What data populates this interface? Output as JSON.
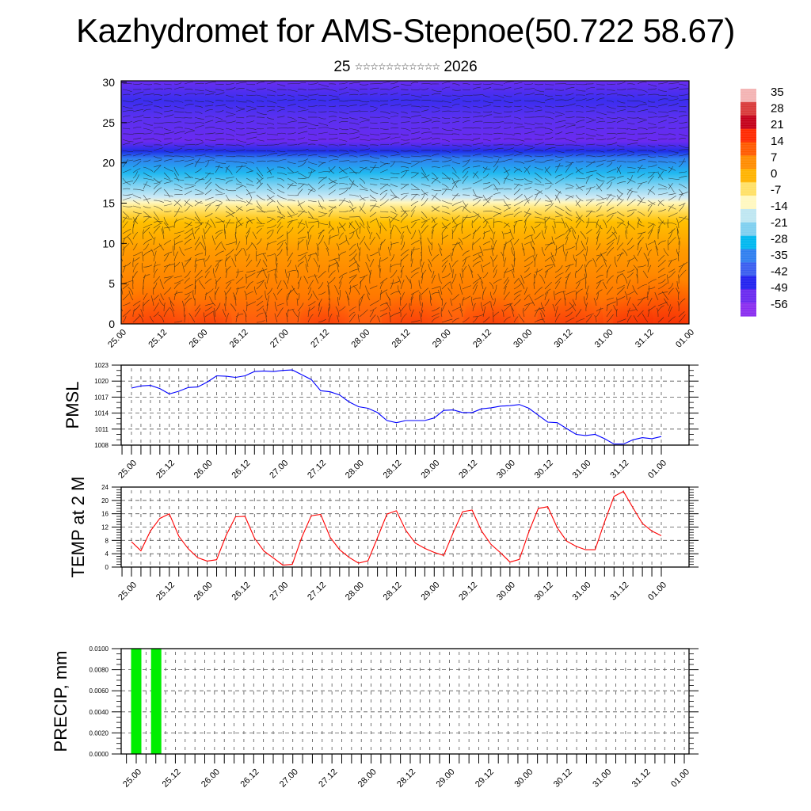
{
  "title": "Kazhydromet for AMS-Stepnoe(50.722 58.67)",
  "subtitle": {
    "day": "25",
    "stars": "☆☆☆☆☆☆☆☆☆☆☆",
    "year": "2026"
  },
  "x_tick_labels": [
    "25.00",
    "25.12",
    "26.00",
    "26.12",
    "27.00",
    "27.12",
    "28.00",
    "28.12",
    "29.00",
    "29.12",
    "30.00",
    "30.12",
    "31.00",
    "31.12",
    "01.00"
  ],
  "chart_data": [
    {
      "type": "heatmap",
      "name": "cross-section",
      "title": "",
      "xlabel": "",
      "ylabel": "",
      "ylim": [
        0,
        30
      ],
      "y_ticks": [
        "0",
        "5",
        "10",
        "15",
        "20",
        "25",
        "30"
      ],
      "x_ticks": [
        "25.00",
        "25.12",
        "26.00",
        "26.12",
        "27.00",
        "27.12",
        "28.00",
        "28.12",
        "29.00",
        "29.12",
        "30.00",
        "30.12",
        "31.00",
        "31.12",
        "01.00"
      ],
      "colorbar": {
        "labels": [
          "35",
          "28",
          "21",
          "14",
          "7",
          "0",
          "-7",
          "-14",
          "-21",
          "-28",
          "-35",
          "-42",
          "-49",
          "-56"
        ],
        "colors": [
          "#f4b3b3",
          "#d93b3b",
          "#c4001a",
          "#ff2a00",
          "#ff5a00",
          "#ff8c00",
          "#ffb300",
          "#ffe066",
          "#fff8c0",
          "#bfe6f2",
          "#7fcff0",
          "#00b8f0",
          "#2f7ff0",
          "#3a5ef0",
          "#2222f0",
          "#6a2af0",
          "#8a2ef0"
        ]
      },
      "overlay": "streamlines"
    },
    {
      "type": "line",
      "name": "pmsl",
      "ylabel": "PMSL",
      "ylim": [
        1008,
        1023
      ],
      "y_ticks": [
        "1008",
        "1011",
        "1014",
        "1017",
        "1020",
        "1023"
      ],
      "x_step_hours": 3,
      "x_ticks": [
        "25.00",
        "25.12",
        "26.00",
        "26.12",
        "27.00",
        "27.12",
        "28.00",
        "28.12",
        "29.00",
        "29.12",
        "30.00",
        "30.12",
        "31.00",
        "31.12",
        "01.00"
      ],
      "color": "#0000ff",
      "values": [
        1018.7,
        1019.1,
        1019.2,
        1018.6,
        1017.6,
        1018.1,
        1018.8,
        1018.9,
        1019.8,
        1021.0,
        1020.9,
        1020.7,
        1021.0,
        1021.8,
        1021.9,
        1021.8,
        1022.0,
        1022.1,
        1021.2,
        1020.3,
        1018.2,
        1018.0,
        1017.4,
        1016.1,
        1015.2,
        1014.9,
        1014.1,
        1012.6,
        1012.2,
        1012.6,
        1012.6,
        1012.6,
        1013.1,
        1014.5,
        1014.6,
        1014.1,
        1014.1,
        1014.8,
        1015.0,
        1015.3,
        1015.4,
        1015.6,
        1014.9,
        1013.6,
        1012.3,
        1012.2,
        1011.1,
        1010.0,
        1009.8,
        1010.0,
        1009.2,
        1008.2,
        1008.2,
        1009.0,
        1009.4,
        1009.2,
        1009.6
      ]
    },
    {
      "type": "line",
      "name": "temp",
      "ylabel": "TEMP at 2 M",
      "ylim": [
        0,
        24
      ],
      "y_ticks": [
        "0",
        "4",
        "8",
        "12",
        "16",
        "20",
        "24"
      ],
      "x_step_hours": 3,
      "x_ticks": [
        "25.00",
        "25.12",
        "26.00",
        "26.12",
        "27.00",
        "27.12",
        "28.00",
        "28.12",
        "29.00",
        "29.12",
        "30.00",
        "30.12",
        "31.00",
        "31.12",
        "01.00"
      ],
      "color": "#ff0000",
      "values": [
        7.6,
        4.9,
        10.8,
        14.6,
        16.0,
        9.3,
        5.5,
        2.8,
        1.8,
        2.2,
        9.5,
        15.1,
        15.2,
        8.7,
        4.8,
        2.7,
        0.6,
        0.8,
        8.9,
        15.4,
        15.8,
        8.9,
        5.2,
        2.9,
        1.2,
        1.9,
        8.8,
        15.9,
        16.9,
        11.0,
        7.2,
        5.6,
        4.4,
        3.5,
        10.3,
        16.6,
        17.1,
        10.8,
        6.8,
        4.3,
        1.5,
        2.3,
        10.6,
        17.6,
        18.1,
        11.8,
        7.8,
        6.2,
        5.2,
        5.2,
        13.5,
        21.2,
        22.7,
        17.8,
        13.1,
        10.8,
        9.4
      ]
    },
    {
      "type": "bar",
      "name": "precip",
      "ylabel": "PRECIP, mm",
      "ylim": [
        0,
        0.01
      ],
      "y_ticks": [
        "0.0000",
        "0.0020",
        "0.0040",
        "0.0060",
        "0.0080",
        "0.0100"
      ],
      "x_step_hours": 3,
      "x_ticks": [
        "25.00",
        "25.12",
        "26.00",
        "26.12",
        "27.00",
        "27.12",
        "28.00",
        "28.12",
        "29.00",
        "29.12",
        "30.00",
        "30.12",
        "31.00",
        "31.12",
        "01.00"
      ],
      "color": "#00ee00",
      "bars": [
        {
          "x": "25.00",
          "value": 0.01
        },
        {
          "x": "25.06",
          "value": 0.01
        }
      ]
    }
  ]
}
